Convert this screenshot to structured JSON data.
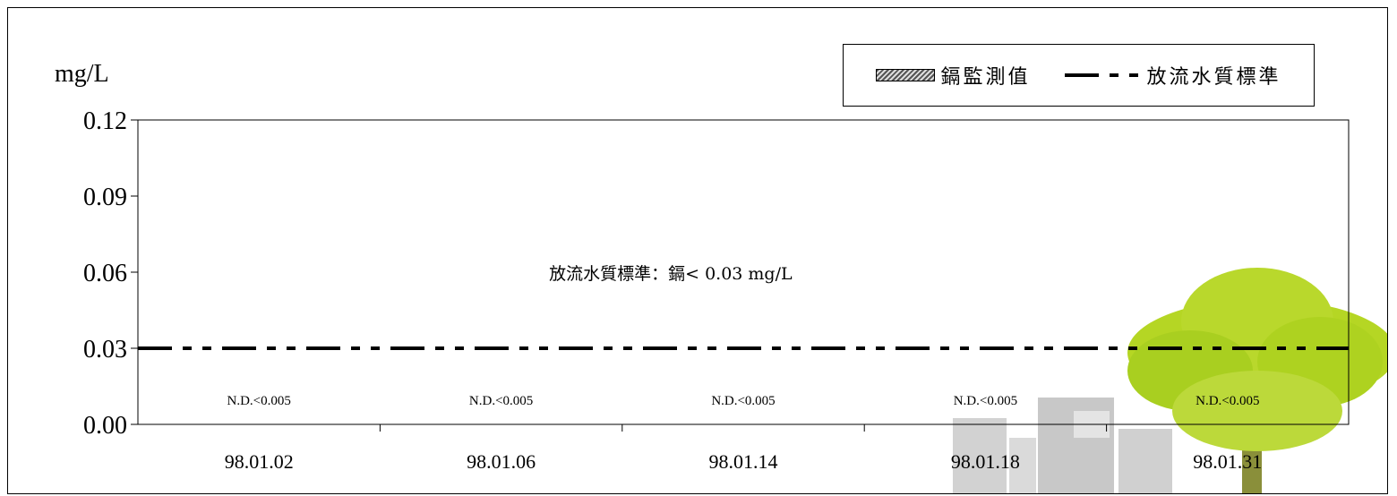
{
  "chart_data": {
    "type": "bar",
    "y_unit": "mg/L",
    "ylim": [
      0,
      0.12
    ],
    "y_ticks": [
      "0.00",
      "0.03",
      "0.06",
      "0.09",
      "0.12"
    ],
    "categories": [
      "98.01.02",
      "98.01.06",
      "98.01.14",
      "98.01.18",
      "98.01.31"
    ],
    "series": [
      {
        "name": "鎘監測值",
        "values": [
          0,
          0,
          0,
          0,
          0
        ]
      }
    ],
    "data_labels": [
      "N.D.<0.005",
      "N.D.<0.005",
      "N.D.<0.005",
      "N.D.<0.005",
      "N.D.<0.005"
    ],
    "reference_line": {
      "name": "放流水質標準",
      "value": 0.03
    },
    "annotation": "放流水質標準：鎘< 0.03 mg/L",
    "legend_position": "top-right",
    "grid": false
  },
  "colors": {
    "standard_line": "#000000",
    "tree_foliage": "#b5d624",
    "building": "#c4c4c4"
  }
}
